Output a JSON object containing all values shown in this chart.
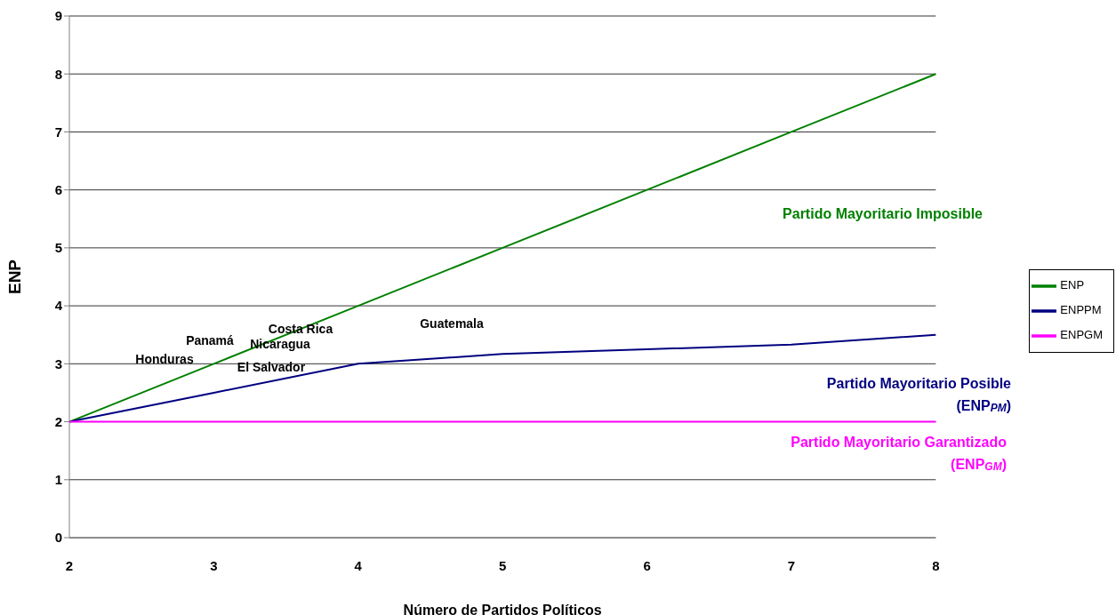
{
  "chart_data": {
    "type": "line",
    "xlabel": "Número de Partidos Políticos",
    "ylabel": "ENP",
    "categories": [
      "2",
      "3",
      "4",
      "5",
      "6",
      "7",
      "8"
    ],
    "series": [
      {
        "name": "ENP",
        "color": "#008000",
        "values": [
          2,
          3,
          4,
          5,
          6,
          7,
          8
        ]
      },
      {
        "name": "ENPPM",
        "color": "#000080",
        "values": [
          2,
          2.5,
          3,
          3.17,
          3.25,
          3.33,
          3.5
        ]
      },
      {
        "name": "ENPGM",
        "color": "#ff00ff",
        "values": [
          2,
          2,
          2,
          2,
          2,
          2,
          2
        ]
      }
    ],
    "ylim": [
      0,
      9
    ],
    "yticks": [
      0,
      1,
      2,
      3,
      4,
      5,
      6,
      7,
      8,
      9
    ],
    "grid": "y",
    "legend": "right",
    "marker": "none",
    "line_style": "solid",
    "annotations": [
      "Honduras",
      "Panamá",
      "Costa Rica",
      "Nicaragua",
      "El Salvador",
      "Guatemala",
      "Partido Mayoritario Imposible",
      "Partido Mayoritario Posible (ENP$_{PM}$)",
      "Partido Mayoritario Garantizado (ENP$_{GM}$)"
    ]
  }
}
